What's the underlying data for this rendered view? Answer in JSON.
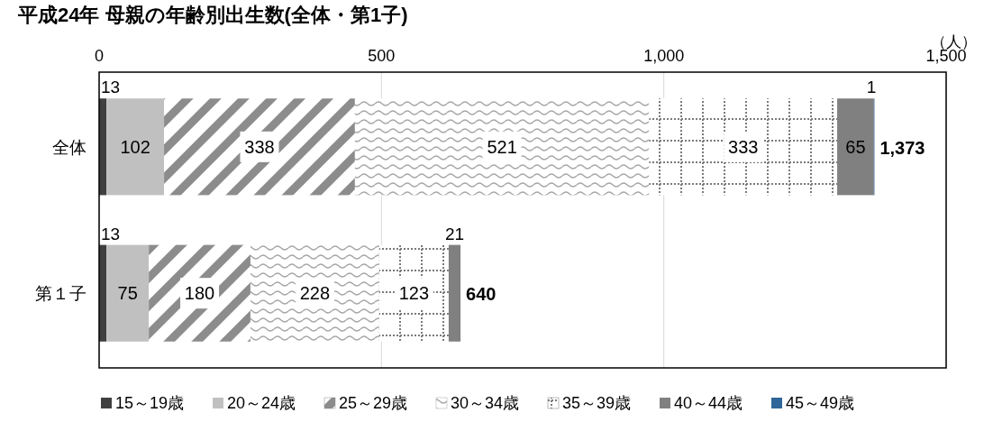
{
  "chart_data": {
    "type": "bar",
    "orientation": "horizontal",
    "stacked": true,
    "title": "平成24年 母親の年齢別出生数(全体・第1子)",
    "xlabel": "（人）",
    "categories": [
      "全体",
      "第１子"
    ],
    "series": [
      {
        "name": "15～19歳",
        "color": "#404040",
        "values": [
          13,
          13
        ],
        "value_labels": [
          "13",
          "13"
        ]
      },
      {
        "name": "20～24歳",
        "color": "#c0c0c0",
        "values": [
          102,
          75
        ],
        "value_labels": [
          "102",
          "75"
        ]
      },
      {
        "name": "25～29歳",
        "color": "#8c8c8c",
        "values": [
          338,
          180
        ],
        "value_labels": [
          "338",
          "180"
        ]
      },
      {
        "name": "30～34歳",
        "color": "#a6a6a6",
        "values": [
          521,
          228
        ],
        "value_labels": [
          "521",
          "228"
        ]
      },
      {
        "name": "35～39歳",
        "color": "#7a7a7a",
        "values": [
          333,
          123
        ],
        "value_labels": [
          "333",
          "123"
        ]
      },
      {
        "name": "40～44歳",
        "color": "#808080",
        "values": [
          65,
          21
        ],
        "value_labels": [
          "65",
          "21"
        ]
      },
      {
        "name": "45～49歳",
        "color": "#2e6699",
        "values": [
          1,
          0
        ],
        "value_labels": [
          "1",
          null
        ]
      }
    ],
    "totals": [
      "1,373",
      "640"
    ],
    "xlim": [
      0,
      1500
    ],
    "xticks": [
      0,
      500,
      {
        "value": 1000,
        "label": "1,000"
      },
      {
        "value": 1500,
        "label": "1,500"
      }
    ],
    "grid": "x",
    "legend": "bottom"
  }
}
